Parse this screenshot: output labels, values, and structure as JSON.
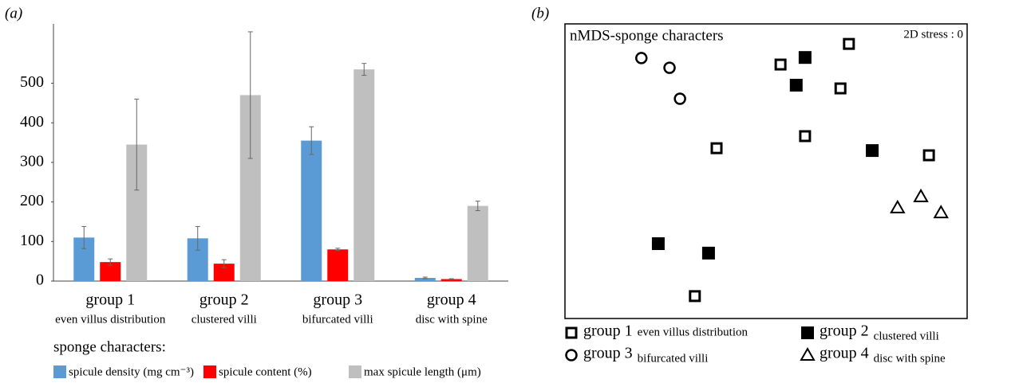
{
  "chart_data": [
    {
      "type": "bar",
      "panel_label": "(a)",
      "categories": [
        "group 1",
        "group 2",
        "group 3",
        "group 4"
      ],
      "subcategories": [
        "even villus distribution",
        "clustered villi",
        "bifurcated villi",
        "disc with spine"
      ],
      "legend_title": "sponge characters:",
      "series": [
        {
          "name": "spicule density (mg cm⁻³)",
          "color": "#5b9bd5",
          "values": [
            110,
            108,
            355,
            8
          ],
          "errors": [
            28,
            30,
            35,
            2
          ]
        },
        {
          "name": "spicule content (%)",
          "color": "#ff0000",
          "values": [
            48,
            44,
            80,
            5
          ],
          "errors": [
            8,
            10,
            3,
            1
          ]
        },
        {
          "name": "max spicule length (μm)",
          "color": "#bfbfbf",
          "values": [
            345,
            470,
            535,
            190
          ],
          "errors": [
            115,
            160,
            15,
            12
          ]
        }
      ],
      "ylim": [
        0,
        650
      ],
      "yticks": [
        0,
        100,
        200,
        300,
        400,
        500
      ],
      "grid": false
    },
    {
      "type": "scatter",
      "panel_label": "(b)",
      "title": "nMDS-sponge characters",
      "annotation": "2D stress : 0",
      "xlim": [
        0,
        100
      ],
      "ylim": [
        0,
        100
      ],
      "series": [
        {
          "name": "group 1",
          "description": "even villus distribution",
          "marker": "square-open",
          "color": "#000000",
          "x": [
            70.6,
            53.6,
            68.5,
            59.7,
            37.7,
            90.5,
            32.3
          ],
          "y": [
            93.2,
            86.2,
            78.1,
            61.9,
            57.8,
            55.4,
            7.6
          ]
        },
        {
          "name": "group 2",
          "description": "clustered villi",
          "marker": "square-filled",
          "color": "#000000",
          "x": [
            59.7,
            57.5,
            76.4,
            23.2,
            35.7
          ],
          "y": [
            88.6,
            79.2,
            57.0,
            25.4,
            22.2
          ]
        },
        {
          "name": "group 3",
          "description": "bifurcated villi",
          "marker": "circle-open",
          "color": "#000000",
          "x": [
            19.0,
            26.0,
            28.6
          ],
          "y": [
            88.4,
            85.1,
            74.6
          ]
        },
        {
          "name": "group 4",
          "description": "disc with spine",
          "marker": "triangle-open",
          "color": "#000000",
          "x": [
            82.7,
            88.5,
            93.5
          ],
          "y": [
            37.6,
            41.4,
            35.9
          ]
        }
      ]
    }
  ]
}
